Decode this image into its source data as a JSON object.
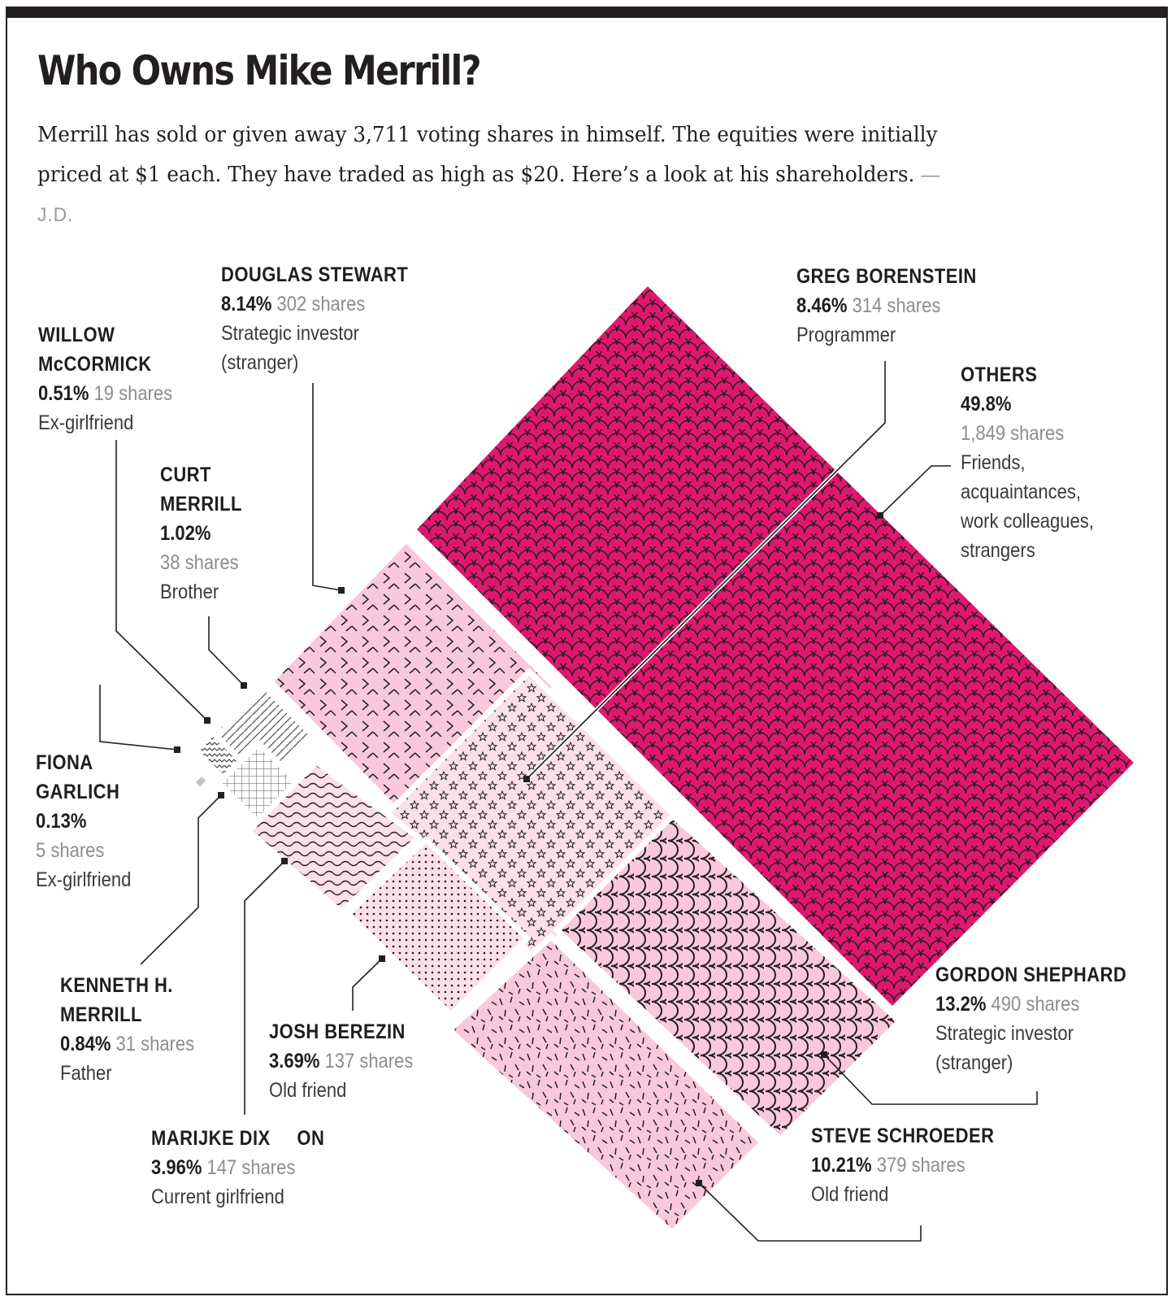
{
  "title": "Who Owns Mike Merrill?",
  "subtitle": "Merrill has sold or given away 3,711 voting shares in himself. The equities were initially priced at $1 each. They have traded as high as $20. Here’s a look at his shareholders.",
  "byline": "—J.D.",
  "colors": {
    "others": "#e1176f",
    "pale_pink": "#f9c8dc",
    "light_pink": "#fbdfea",
    "ink": "#231f20"
  },
  "chart_data": {
    "type": "treemap",
    "total_shares": 3711,
    "shareholders": [
      {
        "key": "willow",
        "name_lines": [
          "WILLOW",
          "McCORMICK"
        ],
        "percent": "0.51%",
        "shares": 19,
        "shares_label": "19 shares",
        "role_lines": [
          "Ex-girlfriend"
        ],
        "pattern": "zigzag"
      },
      {
        "key": "douglas",
        "name_lines": [
          "DOUGLAS STEWART"
        ],
        "percent": "8.14%",
        "shares": 302,
        "shares_label": "302 shares",
        "role_lines": [
          "Strategic investor",
          "(stranger)"
        ],
        "pattern": "chevrons"
      },
      {
        "key": "greg",
        "name_lines": [
          "GREG BORENSTEIN"
        ],
        "percent": "8.46%",
        "shares": 314,
        "shares_label": "314 shares",
        "role_lines": [
          "Programmer"
        ],
        "pattern": "stars"
      },
      {
        "key": "others",
        "name_lines": [
          "OTHERS"
        ],
        "percent": "49.8%",
        "shares": 1849,
        "shares_label": "1,849 shares",
        "role_lines": [
          "Friends,",
          "acquaintances,",
          "work colleagues,",
          "strangers"
        ],
        "pattern": "scales"
      },
      {
        "key": "curt",
        "name_lines": [
          "CURT",
          "MERRILL"
        ],
        "percent": "1.02%",
        "shares": 38,
        "shares_label": "38 shares",
        "role_lines": [
          "Brother"
        ],
        "pattern": "diagonal-lines"
      },
      {
        "key": "fiona",
        "name_lines": [
          "FIONA",
          "GARLICH"
        ],
        "percent": "0.13%",
        "shares": 5,
        "shares_label": "5 shares",
        "role_lines": [
          "Ex-girlfriend"
        ],
        "pattern": "solid-gray"
      },
      {
        "key": "kenneth",
        "name_lines": [
          "KENNETH H.",
          "MERRILL"
        ],
        "percent": "0.84%",
        "shares": 31,
        "shares_label": "31 shares",
        "role_lines": [
          "Father"
        ],
        "pattern": "grid"
      },
      {
        "key": "marijke",
        "name_lines": [
          "MARIJKE DIX     ON"
        ],
        "percent": "3.96%",
        "shares": 147,
        "shares_label": "147 shares",
        "role_lines": [
          "Current girlfriend"
        ],
        "pattern": "waves"
      },
      {
        "key": "josh",
        "name_lines": [
          "JOSH BEREZIN"
        ],
        "percent": "3.69%",
        "shares": 137,
        "shares_label": "137 shares",
        "role_lines": [
          "Old friend"
        ],
        "pattern": "dots"
      },
      {
        "key": "gordon",
        "name_lines": [
          "GORDON SHEPHARD"
        ],
        "percent": "13.2%",
        "shares": 490,
        "shares_label": "490 shares",
        "role_lines": [
          "Strategic investor",
          "(stranger)"
        ],
        "pattern": "arcs"
      },
      {
        "key": "steve",
        "name_lines": [
          "STEVE SCHROEDER"
        ],
        "percent": "10.21%",
        "shares": 379,
        "shares_label": "379 shares",
        "role_lines": [
          "Old friend"
        ],
        "pattern": "dashes"
      }
    ]
  }
}
